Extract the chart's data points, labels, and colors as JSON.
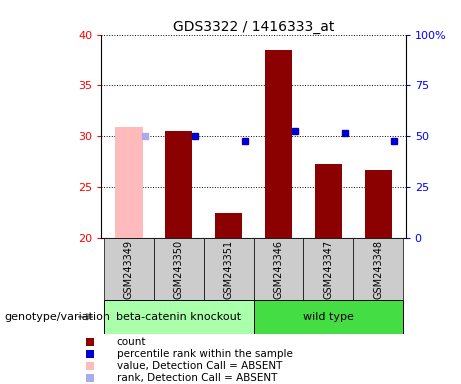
{
  "title": "GDS3322 / 1416333_at",
  "samples": [
    "GSM243349",
    "GSM243350",
    "GSM243351",
    "GSM243346",
    "GSM243347",
    "GSM243348"
  ],
  "bar_values": [
    30.9,
    30.5,
    22.5,
    38.5,
    27.3,
    26.7
  ],
  "bar_colors": [
    "#ffbbbb",
    "#8b0000",
    "#8b0000",
    "#8b0000",
    "#8b0000",
    "#8b0000"
  ],
  "rank_values": [
    30.0,
    30.0,
    29.5,
    30.5,
    30.3,
    29.5
  ],
  "rank_colors": [
    "#aaaaee",
    "#0000cc",
    "#0000cc",
    "#0000cc",
    "#0000cc",
    "#0000cc"
  ],
  "absent_flags": [
    true,
    false,
    false,
    false,
    false,
    false
  ],
  "ylim": [
    20,
    40
  ],
  "yticks": [
    20,
    25,
    30,
    35,
    40
  ],
  "right_ylim": [
    0,
    100
  ],
  "right_yticks": [
    0,
    25,
    50,
    75,
    100
  ],
  "right_yticklabels": [
    "0",
    "25",
    "50",
    "75",
    "100%"
  ],
  "group1_label": "beta-catenin knockout",
  "group2_label": "wild type",
  "group1_color": "#aaffaa",
  "group2_color": "#44dd44",
  "group1_samples": [
    0,
    1,
    2
  ],
  "group2_samples": [
    3,
    4,
    5
  ],
  "xlabel_left": "genotype/variation",
  "legend_items": [
    {
      "label": "count",
      "color": "#8b0000"
    },
    {
      "label": "percentile rank within the sample",
      "color": "#0000cc"
    },
    {
      "label": "value, Detection Call = ABSENT",
      "color": "#ffbbbb"
    },
    {
      "label": "rank, Detection Call = ABSENT",
      "color": "#aaaaee"
    }
  ],
  "bar_width": 0.55,
  "plot_bg": "#ffffff",
  "label_area_bg": "#cccccc"
}
